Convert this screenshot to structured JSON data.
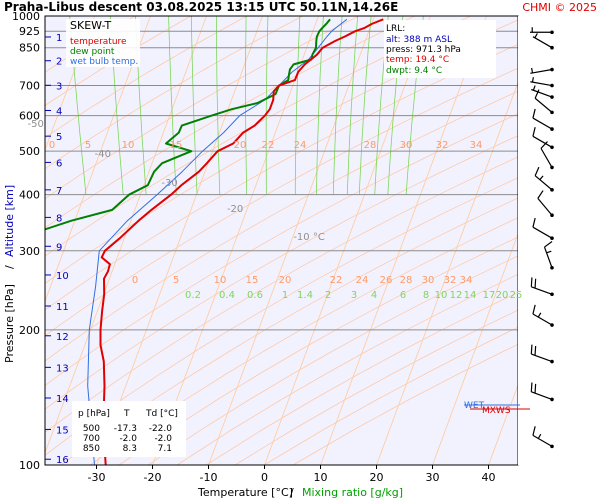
{
  "header": {
    "title": "Praha-Libus   descent   03.08.2025 13:15 UTC   50.11N,14.26E",
    "credit": "CHMI © 2025"
  },
  "colors": {
    "background": "#f2f2ff",
    "isotherm": "#ffcda4",
    "mixing": "#7ed65a",
    "temperature": "#e00000",
    "dewpoint": "#008000",
    "wetbulb": "#3070e0",
    "isobar": "#8c8c8c",
    "wind": "#000000"
  },
  "legend": {
    "title": "SKEW-T",
    "temperature": "temperature",
    "dewpoint": "dew point",
    "wetbulb": "wet bulb temp."
  },
  "lrl": {
    "title": "LRL:",
    "alt": "alt: 388 m ASL",
    "press": "press: 971.3 hPa",
    "temp": "temp: 19.4 °C",
    "dwpt": "dwpt: 9.4 °C"
  },
  "table": {
    "header": [
      "p [hPa]",
      "T",
      "Td [°C]"
    ],
    "rows": [
      [
        "500",
        "-17.3",
        "-22.0"
      ],
      [
        "700",
        "-2.0",
        "-2.0"
      ],
      [
        "850",
        "8.3",
        "7.1"
      ]
    ]
  },
  "labels": {
    "wet": "WET",
    "mxws": "MXWS",
    "xlabel_temp": "Temperature [°C]",
    "xlabel_sep": "/",
    "xlabel_mix": "Mixing ratio [g/kg]",
    "ylabel_p": "Pressure [hPa]",
    "ylabel_sep": "/",
    "ylabel_alt": "Altitude [km]"
  },
  "chart_data": {
    "type": "line",
    "title": "Praha-Libus   descent   03.08.2025 13:15 UTC   50.11N,14.26E",
    "xlabel": "Temperature [°C] / Mixing ratio [g/kg]",
    "ylabel": "Pressure [hPa] / Altitude [km]",
    "xlim": [
      -35,
      45
    ],
    "ylim": [
      1000,
      100
    ],
    "pressure_ticks": [
      100,
      200,
      300,
      400,
      500,
      600,
      700,
      850,
      925,
      1000
    ],
    "temperature_ticks": [
      -30,
      -20,
      -10,
      0,
      10,
      20,
      30,
      40
    ],
    "altitude_ticks": [
      {
        "km": 1,
        "p": 898
      },
      {
        "km": 2,
        "p": 795
      },
      {
        "km": 3,
        "p": 701
      },
      {
        "km": 4,
        "p": 616
      },
      {
        "km": 5,
        "p": 540
      },
      {
        "km": 6,
        "p": 472
      },
      {
        "km": 7,
        "p": 410
      },
      {
        "km": 8,
        "p": 356
      },
      {
        "km": 9,
        "p": 307
      },
      {
        "km": 10,
        "p": 265
      },
      {
        "km": 11,
        "p": 226
      },
      {
        "km": 12,
        "p": 194
      },
      {
        "km": 13,
        "p": 165
      },
      {
        "km": 14,
        "p": 141
      },
      {
        "km": 15,
        "p": 120
      },
      {
        "km": 16,
        "p": 103
      }
    ],
    "isotherm_labels": [
      "-80 °C",
      "-70",
      "-60",
      "-50",
      "-40",
      "-30",
      "-20",
      "-10 °C"
    ],
    "mixing_ratio_labels": [
      "0.2",
      "0.4",
      "0.6",
      "1",
      "1.4",
      "2",
      "3",
      "4",
      "6",
      "8",
      "10",
      "12",
      "14",
      "17",
      "20",
      "25"
    ],
    "theta_e_labels_upper": [
      "0",
      "5",
      "10",
      "15",
      "20",
      "22",
      "24",
      "28",
      "30",
      "32",
      "34"
    ],
    "theta_e_labels_lower": [
      "0",
      "5",
      "10",
      "15",
      "20",
      "22",
      "24",
      "26",
      "28",
      "30",
      "32",
      "34"
    ],
    "series": [
      {
        "name": "temperature",
        "points": [
          [
            983,
            21.0
          ],
          [
            960,
            18.6
          ],
          [
            940,
            17.0
          ],
          [
            925,
            15.2
          ],
          [
            900,
            13.0
          ],
          [
            880,
            11.0
          ],
          [
            850,
            8.3
          ],
          [
            820,
            6.8
          ],
          [
            780,
            4.0
          ],
          [
            750,
            2.3
          ],
          [
            720,
            1.2
          ],
          [
            700,
            -2.0
          ],
          [
            680,
            -3.3
          ],
          [
            650,
            -4.0
          ],
          [
            620,
            -5.2
          ],
          [
            600,
            -6.5
          ],
          [
            570,
            -9.0
          ],
          [
            550,
            -11.5
          ],
          [
            520,
            -14.0
          ],
          [
            500,
            -17.3
          ],
          [
            470,
            -20.0
          ],
          [
            450,
            -22.0
          ],
          [
            420,
            -26.0
          ],
          [
            400,
            -28.5
          ],
          [
            370,
            -33.0
          ],
          [
            350,
            -36.0
          ],
          [
            320,
            -40.5
          ],
          [
            300,
            -44.0
          ],
          [
            290,
            -45.0
          ],
          [
            280,
            -44.0
          ],
          [
            270,
            -44.8
          ],
          [
            260,
            -46.0
          ],
          [
            240,
            -47.0
          ],
          [
            220,
            -48.5
          ],
          [
            200,
            -50.0
          ],
          [
            185,
            -51.0
          ],
          [
            170,
            -51.5
          ],
          [
            150,
            -53.0
          ],
          [
            130,
            -55.0
          ],
          [
            115,
            -56.5
          ],
          [
            100,
            -58.0
          ]
        ]
      },
      {
        "name": "dew point",
        "points": [
          [
            983,
            11.5
          ],
          [
            960,
            10.5
          ],
          [
            940,
            9.5
          ],
          [
            925,
            8.8
          ],
          [
            900,
            8.0
          ],
          [
            880,
            7.6
          ],
          [
            850,
            7.1
          ],
          [
            820,
            6.0
          ],
          [
            800,
            5.5
          ],
          [
            780,
            2.0
          ],
          [
            760,
            1.0
          ],
          [
            740,
            0.5
          ],
          [
            720,
            0.0
          ],
          [
            700,
            -2.0
          ],
          [
            670,
            -3.2
          ],
          [
            640,
            -7.0
          ],
          [
            620,
            -12.0
          ],
          [
            600,
            -16.0
          ],
          [
            570,
            -22.0
          ],
          [
            550,
            -23.0
          ],
          [
            520,
            -26.0
          ],
          [
            500,
            -22.0
          ],
          [
            470,
            -28.0
          ],
          [
            450,
            -30.0
          ],
          [
            420,
            -32.0
          ],
          [
            400,
            -36.0
          ],
          [
            370,
            -40.0
          ],
          [
            350,
            -48.0
          ],
          [
            330,
            -55.0
          ],
          [
            310,
            -58.0
          ],
          [
            300,
            -62.0
          ],
          [
            290,
            -70.0
          ],
          [
            280,
            -75.0
          ],
          [
            260,
            -78.0
          ],
          [
            240,
            -81.0
          ],
          [
            220,
            -83.0
          ],
          [
            200,
            -87.0
          ],
          [
            180,
            -89.0
          ],
          [
            160,
            -92.0
          ],
          [
            140,
            -94.0
          ],
          [
            120,
            -95.0
          ],
          [
            100,
            -97.0
          ]
        ]
      },
      {
        "name": "wet bulb temp.",
        "points": [
          [
            983,
            14.5
          ],
          [
            950,
            12.5
          ],
          [
            925,
            11.0
          ],
          [
            900,
            9.8
          ],
          [
            850,
            7.5
          ],
          [
            800,
            5.0
          ],
          [
            750,
            1.2
          ],
          [
            700,
            -2.0
          ],
          [
            650,
            -5.5
          ],
          [
            600,
            -11.0
          ],
          [
            550,
            -15.0
          ],
          [
            500,
            -20.0
          ],
          [
            450,
            -25.0
          ],
          [
            400,
            -31.0
          ],
          [
            350,
            -38.0
          ],
          [
            300,
            -45.0
          ],
          [
            250,
            -48.0
          ],
          [
            200,
            -52.0
          ],
          [
            150,
            -56.0
          ],
          [
            100,
            -60.0
          ]
        ]
      }
    ],
    "wind_barbs": [
      {
        "p": 110,
        "speed_kt": 15,
        "dir": 300
      },
      {
        "p": 140,
        "speed_kt": 20,
        "dir": 290
      },
      {
        "p": 170,
        "speed_kt": 20,
        "dir": 290
      },
      {
        "p": 205,
        "speed_kt": 15,
        "dir": 300
      },
      {
        "p": 240,
        "speed_kt": 20,
        "dir": 290
      },
      {
        "p": 275,
        "speed_kt": 15,
        "dir": 340
      },
      {
        "p": 320,
        "speed_kt": 10,
        "dir": 300
      },
      {
        "p": 360,
        "speed_kt": 10,
        "dir": 320
      },
      {
        "p": 410,
        "speed_kt": 15,
        "dir": 310
      },
      {
        "p": 460,
        "speed_kt": 10,
        "dir": 330
      },
      {
        "p": 510,
        "speed_kt": 10,
        "dir": 300
      },
      {
        "p": 560,
        "speed_kt": 10,
        "dir": 300
      },
      {
        "p": 610,
        "speed_kt": 10,
        "dir": 310
      },
      {
        "p": 660,
        "speed_kt": 5,
        "dir": 290
      },
      {
        "p": 700,
        "speed_kt": 5,
        "dir": 280
      },
      {
        "p": 760,
        "speed_kt": 5,
        "dir": 260
      },
      {
        "p": 850,
        "speed_kt": 5,
        "dir": 300
      },
      {
        "p": 920,
        "speed_kt": 5,
        "dir": 270
      }
    ]
  }
}
